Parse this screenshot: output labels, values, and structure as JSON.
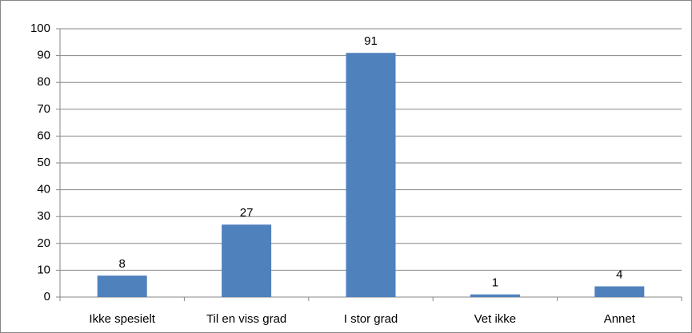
{
  "chart_data": {
    "type": "bar",
    "categories": [
      "Ikke spesielt",
      "Til en viss grad",
      "I stor grad",
      "Vet ikke",
      "Annet"
    ],
    "values": [
      8,
      27,
      91,
      1,
      4
    ],
    "color": "#4f81bd",
    "ylim": [
      0,
      100
    ],
    "yticks": [
      0,
      10,
      20,
      30,
      40,
      50,
      60,
      70,
      80,
      90,
      100
    ],
    "grid": true,
    "data_labels": true
  }
}
